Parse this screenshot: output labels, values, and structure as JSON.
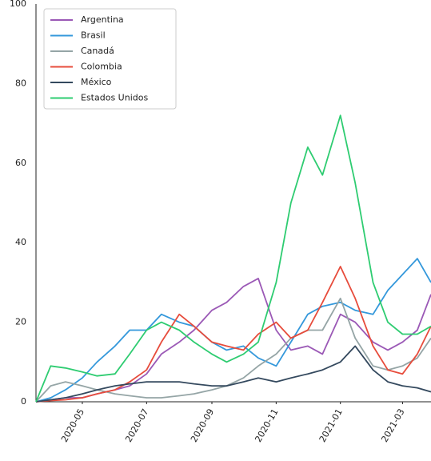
{
  "chart_data": {
    "type": "line",
    "x": [
      "2020-03-18",
      "2020-04-01",
      "2020-04-15",
      "2020-05-01",
      "2020-05-15",
      "2020-06-01",
      "2020-06-15",
      "2020-07-01",
      "2020-07-15",
      "2020-08-01",
      "2020-08-15",
      "2020-09-01",
      "2020-09-15",
      "2020-10-01",
      "2020-10-15",
      "2020-11-01",
      "2020-11-15",
      "2020-12-01",
      "2020-12-15",
      "2021-01-01",
      "2021-01-15",
      "2021-02-01",
      "2021-02-15",
      "2021-03-01",
      "2021-03-15",
      "2021-03-28"
    ],
    "series": [
      {
        "name": "Argentina",
        "color": "#9b59b6",
        "values": [
          0,
          0.5,
          1,
          1,
          2,
          3,
          4,
          7,
          12,
          15,
          18,
          23,
          25,
          29,
          31,
          18,
          13,
          14,
          12,
          22,
          20,
          15,
          13,
          15,
          18,
          27
        ]
      },
      {
        "name": "Brasil",
        "color": "#3498db",
        "values": [
          0,
          1,
          3,
          6,
          10,
          14,
          18,
          18,
          22,
          20,
          19,
          15,
          13,
          14,
          11,
          9,
          15,
          22,
          24,
          25,
          23,
          22,
          28,
          32,
          36,
          30
        ]
      },
      {
        "name": "Canadá",
        "color": "#95a5a6",
        "values": [
          0,
          4,
          5,
          4,
          3,
          2,
          1.5,
          1,
          1,
          1.5,
          2,
          3,
          4,
          6,
          9,
          12,
          16,
          18,
          18,
          26,
          16,
          9,
          8,
          9,
          11,
          16
        ]
      },
      {
        "name": "Colombia",
        "color": "#e74c3c",
        "values": [
          0,
          0.3,
          0.5,
          1,
          2,
          3,
          5,
          8,
          15,
          22,
          19,
          15,
          14,
          13,
          17,
          20,
          16,
          18,
          25,
          34,
          26,
          14,
          8,
          7,
          12,
          19
        ]
      },
      {
        "name": "México",
        "color": "#34495e",
        "values": [
          0,
          0.5,
          1,
          2,
          3,
          4,
          4.5,
          5,
          5,
          5,
          4.5,
          4,
          4,
          5,
          6,
          5,
          6,
          7,
          8,
          10,
          14,
          8,
          5,
          4,
          3.5,
          2.5
        ]
      },
      {
        "name": "Estados Unidos",
        "color": "#2ecc71",
        "values": [
          0,
          9,
          8.5,
          7.5,
          6.5,
          7,
          12,
          18,
          20,
          18,
          15,
          12,
          10,
          12,
          15,
          30,
          50,
          64,
          57,
          72,
          55,
          30,
          20,
          17,
          17,
          19
        ]
      }
    ],
    "xlim": [
      "2020-03-18",
      "2021-03-28"
    ],
    "xticks": [
      {
        "value": "2020-05-01",
        "label": "2020-05"
      },
      {
        "value": "2020-07-01",
        "label": "2020-07"
      },
      {
        "value": "2020-09-01",
        "label": "2020-09"
      },
      {
        "value": "2020-11-01",
        "label": "2020-11"
      },
      {
        "value": "2021-01-01",
        "label": "2021-01"
      },
      {
        "value": "2021-03-01",
        "label": "2021-03"
      }
    ],
    "ylim": [
      0,
      100
    ],
    "yticks": [
      0,
      20,
      40,
      60,
      80,
      100
    ],
    "grid": false,
    "legend": "upper-left"
  }
}
